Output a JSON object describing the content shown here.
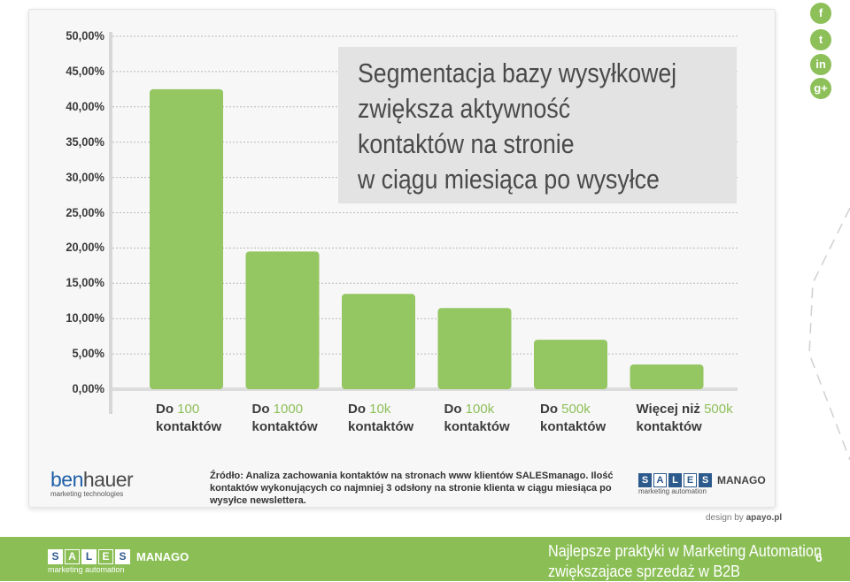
{
  "chart_data": {
    "type": "bar",
    "title_lines": [
      "Segmentacja bazy wysyłkowej",
      "zwiększa aktywność",
      "kontaktów na stronie",
      "w ciągu miesiąca po wysyłce"
    ],
    "y_ticks": [
      "0,00%",
      "5,00%",
      "10,00%",
      "15,00%",
      "20,00%",
      "25,00%",
      "30,00%",
      "35,00%",
      "40,00%",
      "45,00%",
      "50,00%"
    ],
    "ylim": [
      0,
      50
    ],
    "grid": true,
    "categories": [
      {
        "prefix": "Do ",
        "value_label": "100",
        "suffix": "kontaktów"
      },
      {
        "prefix": "Do ",
        "value_label": "1000",
        "suffix": "kontaktów"
      },
      {
        "prefix": "Do ",
        "value_label": "10k",
        "suffix": "kontaktów"
      },
      {
        "prefix": "Do ",
        "value_label": "100k",
        "suffix": "kontaktów"
      },
      {
        "prefix": "Do ",
        "value_label": "500k",
        "suffix": "kontaktów"
      },
      {
        "prefix": "Więcej niż ",
        "value_label": "500k",
        "suffix": "kontaktów"
      }
    ],
    "values": [
      42.5,
      19.5,
      13.5,
      11.5,
      7.0,
      3.5
    ],
    "bar_color": "#94c662"
  },
  "source_text": "Źródło: Analiza zachowania kontaktów na stronach www klientów SALESmanago. Ilość kontaktów wykonujących co najmniej 3 odsłony na stronie klienta w ciągu miesiąca po wysyłce newslettera.",
  "logos": {
    "benhauer_part1": "ben",
    "benhauer_part2": "hauer",
    "benhauer_sub": "marketing technologies",
    "sales_letters": [
      "S",
      "A",
      "L",
      "E",
      "S"
    ],
    "manago": "MANAGO",
    "sales_sub": "marketing automation"
  },
  "design_credit_prefix": "design by ",
  "design_credit_name": "apayo.pl",
  "social_icons": [
    "facebook-icon",
    "twitter-icon",
    "linkedin-icon",
    "google-plus-icon"
  ],
  "social_glyphs": [
    "f",
    "t",
    "in",
    "g+"
  ],
  "footer": {
    "line1": "Najlepsze praktyki w Marketing Automation",
    "line2": "zwiększajace sprzedaż w B2B",
    "page": "6"
  },
  "colors": {
    "accent_green": "#8bbf56",
    "brand_blue": "#2d5a8c"
  }
}
